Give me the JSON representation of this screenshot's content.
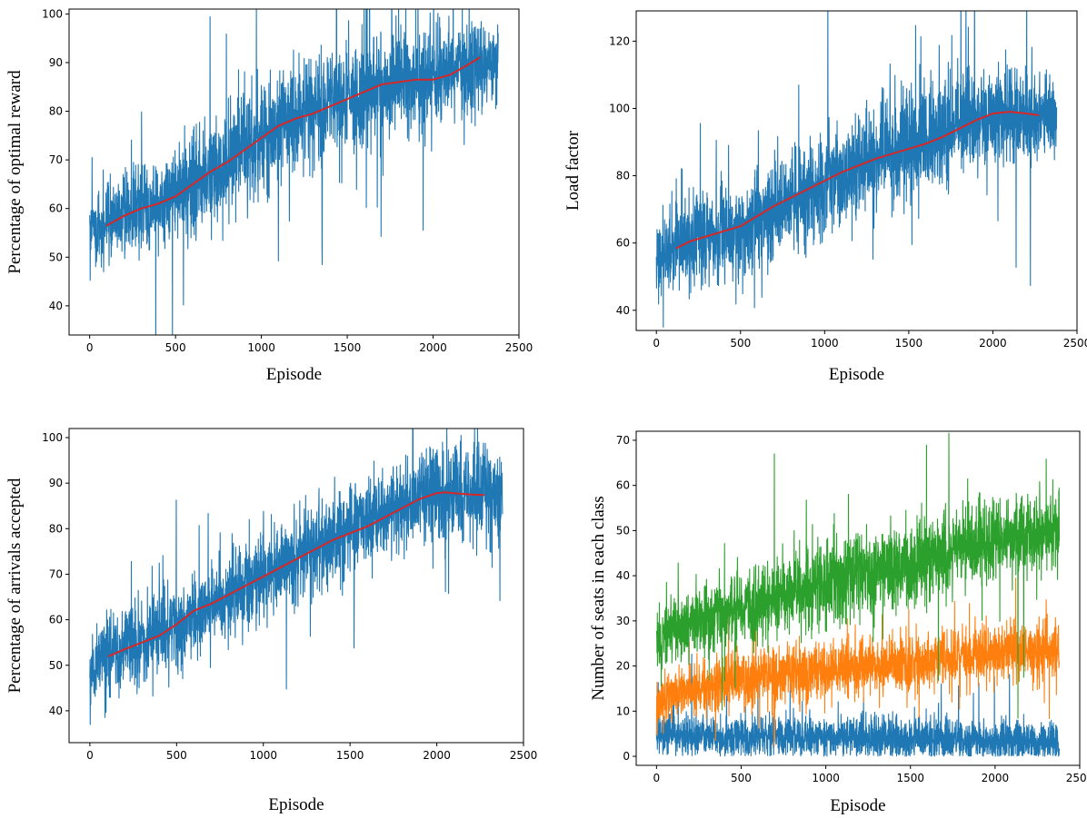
{
  "chart_data": [
    {
      "type": "line",
      "title": "",
      "xlabel": "Episode",
      "ylabel": "Percentage of optimal reward",
      "xlim": [
        -120,
        2500
      ],
      "ylim": [
        34,
        101
      ],
      "xticks": [
        0,
        500,
        1000,
        1500,
        2000,
        2500
      ],
      "yticks": [
        40,
        50,
        60,
        70,
        80,
        90,
        100
      ],
      "grid": false,
      "series": [
        {
          "role": "raw",
          "color": "#1f77b4",
          "n_points": 2380,
          "trend_x": [
            0,
            100,
            300,
            500,
            700,
            900,
            1100,
            1300,
            1500,
            1700,
            1900,
            2100,
            2380
          ],
          "trend_y": [
            55,
            56.5,
            60,
            62.5,
            67.5,
            72,
            77,
            80,
            83,
            85.5,
            86.5,
            88,
            91
          ],
          "spread": [
            5,
            5,
            6,
            6.5,
            7,
            7,
            7,
            7,
            7,
            7,
            7,
            7,
            5
          ]
        },
        {
          "role": "moving-average",
          "color": "#d62728",
          "x": [
            100,
            200,
            300,
            400,
            500,
            600,
            700,
            800,
            900,
            1000,
            1100,
            1200,
            1300,
            1400,
            1500,
            1600,
            1700,
            1800,
            1900,
            2000,
            2100,
            2200,
            2270
          ],
          "y": [
            56.5,
            58.5,
            60,
            61,
            62.5,
            65,
            67.5,
            69.5,
            72,
            74.5,
            77,
            78.5,
            79.5,
            81,
            82.5,
            84,
            85.5,
            86,
            86.5,
            86.5,
            87.5,
            89.5,
            91
          ]
        }
      ]
    },
    {
      "type": "line",
      "title": "",
      "xlabel": "Episode",
      "ylabel": "Load factor",
      "xlim": [
        -120,
        2500
      ],
      "ylim": [
        34,
        129
      ],
      "xticks": [
        0,
        500,
        1000,
        1500,
        2000,
        2500
      ],
      "yticks": [
        40,
        60,
        80,
        100,
        120
      ],
      "grid": false,
      "series": [
        {
          "role": "raw",
          "color": "#1f77b4",
          "n_points": 2380,
          "trend_x": [
            0,
            100,
            300,
            500,
            700,
            900,
            1100,
            1300,
            1500,
            1700,
            1900,
            2100,
            2380
          ],
          "trend_y": [
            55,
            58,
            62,
            64,
            70,
            75,
            81,
            86,
            89,
            93,
            97,
            98,
            98
          ],
          "spread": [
            7,
            8,
            9,
            10,
            10,
            10,
            10,
            10,
            11,
            11,
            10,
            9,
            7
          ]
        },
        {
          "role": "moving-average",
          "color": "#d62728",
          "x": [
            120,
            200,
            300,
            400,
            500,
            600,
            700,
            800,
            900,
            1000,
            1100,
            1200,
            1300,
            1400,
            1500,
            1600,
            1700,
            1800,
            1900,
            2000,
            2100,
            2200,
            2270
          ],
          "y": [
            58.5,
            60.5,
            62,
            63.5,
            65,
            68,
            71,
            73.5,
            76,
            78.5,
            81,
            83,
            85,
            86.5,
            88,
            89.5,
            91.5,
            94,
            96.5,
            98.5,
            99,
            98.5,
            98
          ]
        }
      ]
    },
    {
      "type": "line",
      "title": "",
      "xlabel": "Episode",
      "ylabel": "Percentage of arrivals accepted",
      "xlim": [
        -120,
        2500
      ],
      "ylim": [
        33,
        102
      ],
      "xticks": [
        0,
        500,
        1000,
        1500,
        2000,
        2500
      ],
      "yticks": [
        40,
        50,
        60,
        70,
        80,
        90,
        100
      ],
      "grid": false,
      "series": [
        {
          "role": "raw",
          "color": "#1f77b4",
          "n_points": 2380,
          "trend_x": [
            0,
            100,
            300,
            500,
            700,
            900,
            1100,
            1300,
            1500,
            1700,
            1900,
            2100,
            2380
          ],
          "trend_y": [
            50,
            52,
            55,
            59,
            63,
            67.5,
            72,
            76,
            80,
            83.5,
            87,
            88,
            87.5
          ],
          "spread": [
            5,
            5,
            6,
            6,
            6,
            6,
            6,
            6,
            6,
            6,
            6,
            7,
            7
          ]
        },
        {
          "role": "moving-average",
          "color": "#d62728",
          "x": [
            110,
            200,
            300,
            400,
            500,
            600,
            700,
            800,
            900,
            1000,
            1100,
            1200,
            1300,
            1400,
            1500,
            1600,
            1700,
            1800,
            1900,
            2000,
            2050,
            2100,
            2200,
            2270
          ],
          "y": [
            52,
            53.5,
            55,
            56.5,
            59,
            62,
            63.5,
            65.5,
            67.5,
            69.5,
            71.5,
            73.5,
            75.5,
            77.5,
            79,
            80.5,
            82.5,
            84.5,
            86.5,
            87.8,
            88,
            87.8,
            87.5,
            87.4
          ]
        }
      ]
    },
    {
      "type": "line",
      "title": "",
      "xlabel": "Episode",
      "ylabel": "Number of seats in each class",
      "xlim": [
        -120,
        2500
      ],
      "ylim": [
        -2,
        72
      ],
      "xticks": [
        0,
        500,
        1000,
        1500,
        2000,
        2500
      ],
      "yticks": [
        0,
        10,
        20,
        30,
        40,
        50,
        60,
        70
      ],
      "grid": false,
      "series": [
        {
          "role": "raw",
          "color": "#1f77b4",
          "n_points": 2380,
          "trend_x": [
            0,
            500,
            1000,
            1500,
            2000,
            2380
          ],
          "trend_y": [
            5,
            4.5,
            4.5,
            4,
            3.5,
            3
          ],
          "spread": [
            3,
            3,
            3,
            3,
            3,
            3
          ]
        },
        {
          "role": "raw",
          "color": "#ff7f0e",
          "n_points": 2380,
          "trend_x": [
            0,
            100,
            500,
            1000,
            1500,
            2000,
            2380
          ],
          "trend_y": [
            11,
            14,
            17,
            19,
            21,
            23,
            24
          ],
          "spread": [
            3,
            3.5,
            4,
            4,
            4,
            4,
            4
          ]
        },
        {
          "role": "raw",
          "color": "#2ca02c",
          "n_points": 2380,
          "trend_x": [
            0,
            100,
            500,
            1000,
            1500,
            2000,
            2380
          ],
          "trend_y": [
            25,
            28,
            33,
            38,
            43,
            48,
            50
          ],
          "spread": [
            5,
            5,
            5.5,
            6,
            6,
            6,
            6
          ]
        }
      ]
    }
  ]
}
